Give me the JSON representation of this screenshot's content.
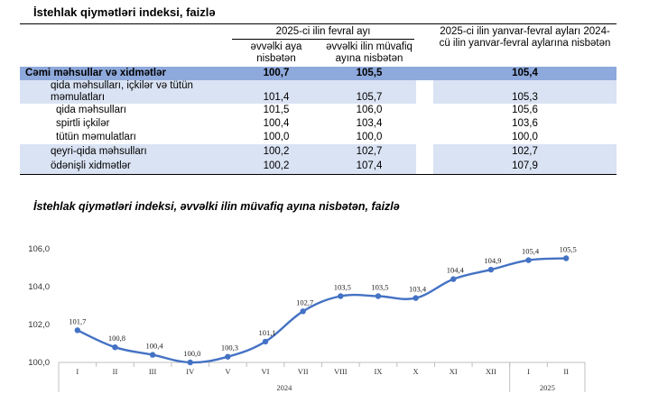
{
  "table": {
    "title": "İstehlak qiymətləri indeksi, faizlə",
    "header_group": "2025-ci ilin fevral ayı",
    "col1": "əvvəlki aya nisbətən",
    "col2": "əvvəlki ilin müvafiq ayına nisbətən",
    "col3": "2025-ci ilin yanvar-fevral ayları 2024-cü ilin yanvar-fevral aylarına nisbətən",
    "rows": [
      {
        "label": "Cəmi məhsullar və xidmətlər",
        "v1": "100,7",
        "v2": "105,5",
        "v3": "105,4"
      },
      {
        "label": "qida məhsulları, içkilər və tütün məmulatları",
        "v1": "101,4",
        "v2": "105,7",
        "v3": "105,3"
      },
      {
        "label": "qida məhsulları",
        "v1": "101,5",
        "v2": "106,0",
        "v3": "105,6"
      },
      {
        "label": "spirtli içkilər",
        "v1": "100,4",
        "v2": "103,4",
        "v3": "103,6"
      },
      {
        "label": "tütün məmulatları",
        "v1": "100,0",
        "v2": "100,0",
        "v3": "100,0"
      },
      {
        "label": "qeyri-qida məhsulları",
        "v1": "100,2",
        "v2": "102,7",
        "v3": "102,7"
      },
      {
        "label": "ödənişli xidmətlər",
        "v1": "100,2",
        "v2": "107,4",
        "v3": "107,9"
      }
    ]
  },
  "chart_data": {
    "type": "line",
    "title": "İstehlak qiymətləri indeksi, əvvəlki ilin müvafiq ayına nisbətən, faizlə",
    "categories": [
      "I",
      "II",
      "III",
      "IV",
      "V",
      "VI",
      "VII",
      "VIII",
      "IX",
      "X",
      "XI",
      "XII",
      "I",
      "II"
    ],
    "groups": [
      {
        "label": "2024",
        "count": 12
      },
      {
        "label": "2025",
        "count": 2
      }
    ],
    "series": [
      {
        "values": [
          101.7,
          100.8,
          100.4,
          100.0,
          100.3,
          101.1,
          102.7,
          103.5,
          103.5,
          103.4,
          104.4,
          104.9,
          105.4,
          105.5
        ]
      }
    ],
    "data_labels": [
      "101,7",
      "100,8",
      "100,4",
      "100,0",
      "100,3",
      "101,1",
      "102,7",
      "103,5",
      "103,5",
      "103,4",
      "104,4",
      "104,9",
      "105,4",
      "105,5"
    ],
    "ylim": [
      100,
      106
    ],
    "yticks": [
      "100,0",
      "102,0",
      "104,0",
      "106,0"
    ],
    "color": "#4472c4",
    "grid": false
  }
}
